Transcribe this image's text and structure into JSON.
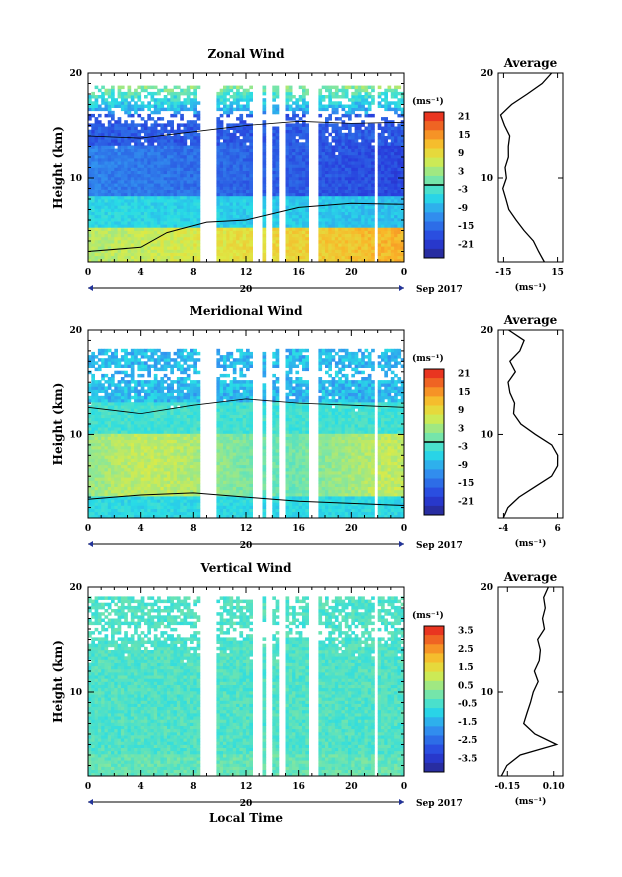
{
  "figure": {
    "xlabel": "Local Time",
    "date_label": "Sep 2017",
    "day_label": "20"
  },
  "chart_data": [
    {
      "type": "heatmap",
      "title": "Zonal Wind",
      "ylabel": "Height (km)",
      "xlabel": "Local Time",
      "x_ticks": [
        "0",
        "4",
        "8",
        "12",
        "16",
        "20",
        "0"
      ],
      "y_ticks": [
        "10",
        "20"
      ],
      "xlim": [
        0,
        24
      ],
      "ylim": [
        2,
        20
      ],
      "colorbar": {
        "unit": "(ms⁻¹)",
        "ticks": [
          "21",
          "15",
          "9",
          "3",
          "-3",
          "-9",
          "-15",
          "-21"
        ],
        "range": [
          -24,
          24
        ],
        "contour_at": 0
      },
      "data_gaps_hours": [
        [
          8.6,
          9.6
        ],
        [
          12.7,
          13.1
        ],
        [
          13.7,
          14.0
        ],
        [
          14.5,
          14.9
        ],
        [
          16.8,
          17.3
        ],
        [
          21.8,
          22.0
        ]
      ],
      "profile": {
        "title": "Average",
        "xlabel": "(ms⁻¹)",
        "x_ticks": [
          "-15",
          "15"
        ],
        "xlim": [
          -18,
          18
        ],
        "y_ticks": [
          "10",
          "20"
        ],
        "heights_km": [
          2,
          3,
          4,
          5,
          6,
          7,
          8,
          9,
          10,
          11,
          12,
          13,
          14,
          15,
          16,
          17,
          18,
          19,
          20
        ],
        "values": [
          8,
          5,
          1,
          -4,
          -8,
          -12,
          -14,
          -15,
          -14,
          -14,
          -13,
          -12,
          -11,
          -14,
          -16,
          -10,
          -2,
          6,
          12
        ]
      }
    },
    {
      "type": "heatmap",
      "title": "Meridional Wind",
      "ylabel": "Height (km)",
      "xlabel": "Local Time",
      "x_ticks": [
        "0",
        "4",
        "8",
        "12",
        "16",
        "20",
        "0"
      ],
      "y_ticks": [
        "10",
        "20"
      ],
      "xlim": [
        0,
        24
      ],
      "ylim": [
        2,
        20
      ],
      "colorbar": {
        "unit": "(ms⁻¹)",
        "ticks": [
          "21",
          "15",
          "9",
          "3",
          "-3",
          "-9",
          "-15",
          "-21"
        ],
        "range": [
          -24,
          24
        ],
        "contour_at": 0
      },
      "data_gaps_hours": [
        [
          8.6,
          9.6
        ],
        [
          12.7,
          13.1
        ],
        [
          13.7,
          14.0
        ],
        [
          14.5,
          14.9
        ],
        [
          16.8,
          17.3
        ],
        [
          21.8,
          22.0
        ]
      ],
      "profile": {
        "title": "Average",
        "xlabel": "(ms⁻¹)",
        "x_ticks": [
          "-4",
          "6"
        ],
        "xlim": [
          -5,
          7
        ],
        "y_ticks": [
          "10",
          "20"
        ],
        "heights_km": [
          2,
          3,
          4,
          5,
          6,
          7,
          8,
          9,
          10,
          11,
          12,
          13,
          14,
          15,
          16,
          17,
          18,
          19,
          20
        ],
        "values": [
          -4,
          -3,
          -1,
          2,
          5,
          6,
          6,
          5,
          2,
          -1,
          -2,
          -2,
          -3,
          -3,
          -2,
          -3,
          -1,
          0,
          -3
        ]
      }
    },
    {
      "type": "heatmap",
      "title": "Vertical Wind",
      "ylabel": "Height (km)",
      "xlabel": "Local Time",
      "x_ticks": [
        "0",
        "4",
        "8",
        "12",
        "16",
        "20",
        "0"
      ],
      "y_ticks": [
        "10",
        "20"
      ],
      "xlim": [
        0,
        24
      ],
      "ylim": [
        2,
        20
      ],
      "colorbar": {
        "unit": "(ms⁻¹)",
        "ticks": [
          "3.5",
          "2.5",
          "1.5",
          "0.5",
          "-0.5",
          "-1.5",
          "-2.5",
          "-3.5"
        ],
        "range": [
          -4,
          4
        ]
      },
      "data_gaps_hours": [
        [
          8.6,
          9.6
        ],
        [
          12.7,
          13.1
        ],
        [
          13.7,
          14.0
        ],
        [
          14.5,
          14.9
        ],
        [
          16.8,
          17.3
        ],
        [
          21.8,
          22.0
        ]
      ],
      "profile": {
        "title": "Average",
        "xlabel": "(ms⁻¹)",
        "x_ticks": [
          "-0.15",
          "0.10"
        ],
        "xlim": [
          -0.2,
          0.15
        ],
        "y_ticks": [
          "10",
          "20"
        ],
        "heights_km": [
          2,
          3,
          4,
          5,
          6,
          7,
          8,
          9,
          10,
          11,
          12,
          13,
          14,
          15,
          16,
          17,
          18,
          19,
          20
        ],
        "values": [
          -0.18,
          -0.15,
          -0.08,
          0.12,
          0.0,
          -0.06,
          -0.04,
          -0.02,
          -0.01,
          0.01,
          0.0,
          0.02,
          0.03,
          0.02,
          0.05,
          0.04,
          0.06,
          0.05,
          0.07
        ]
      }
    }
  ]
}
